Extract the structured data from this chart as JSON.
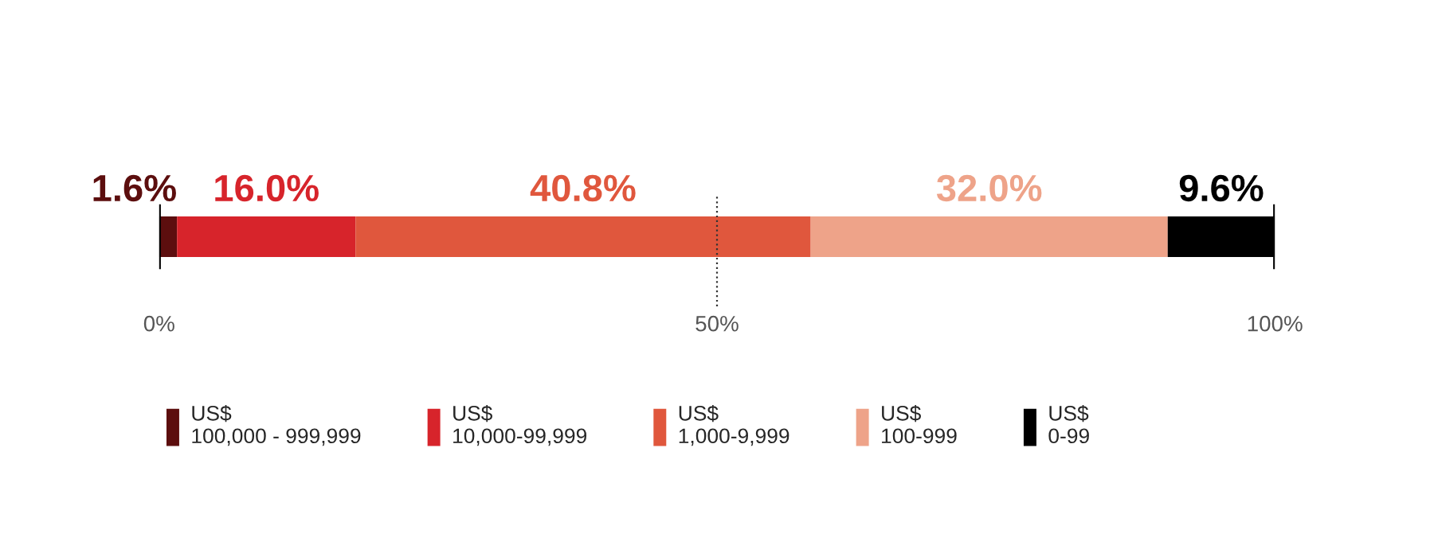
{
  "chart_data": {
    "type": "bar",
    "orientation": "horizontal",
    "stacked": true,
    "categories": [
      null
    ],
    "series": [
      {
        "name": "US$\n100,000 - 999,999",
        "color": "#5c0e0e",
        "values": [
          1.6
        ],
        "value_labels": [
          "1.6%"
        ]
      },
      {
        "name": "US$\n10,000-99,999",
        "color": "#d7242b",
        "values": [
          16.0
        ],
        "value_labels": [
          "16.0%"
        ]
      },
      {
        "name": "US$\n1,000-9,999",
        "color": "#e0573d",
        "values": [
          40.8
        ],
        "value_labels": [
          "40.8%"
        ]
      },
      {
        "name": "US$\n100-999",
        "color": "#eea389",
        "values": [
          32.0
        ],
        "value_labels": [
          "32.0%"
        ]
      },
      {
        "name": "US$\n0-99",
        "color": "#000000",
        "values": [
          9.6
        ],
        "value_labels": [
          "9.6%"
        ]
      }
    ],
    "xlim": [
      0,
      100
    ],
    "xticks": [
      {
        "value": 0,
        "label": "0%"
      },
      {
        "value": 50,
        "label": "50%"
      },
      {
        "value": 100,
        "label": "100%"
      }
    ],
    "ref_lines": [
      {
        "axis": "x",
        "value": 50,
        "label": null,
        "line_style": "dotted",
        "color": "#333333"
      }
    ],
    "legend": "bottom",
    "grid": false
  }
}
